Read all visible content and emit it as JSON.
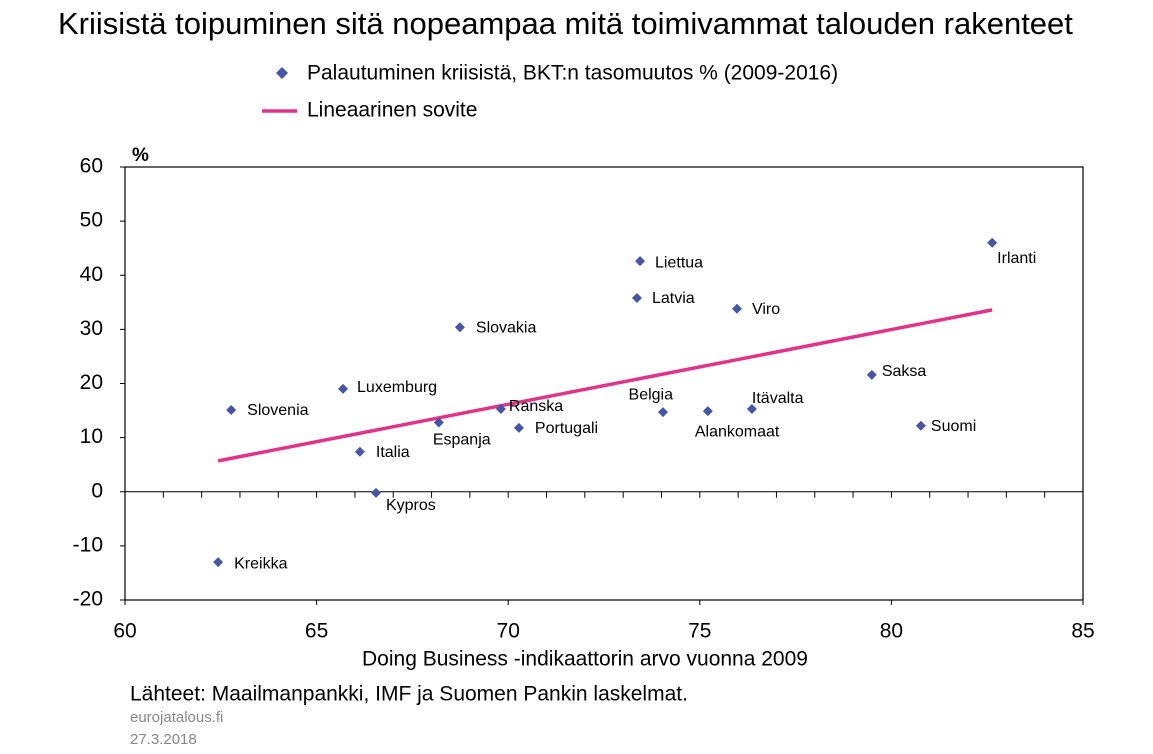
{
  "chart_data": {
    "type": "scatter",
    "title": "Kriisistä toipuminen sitä nopeampaa mitä toimivammat talouden rakenteet",
    "x_label": "Doing Business -indikaattorin arvo vuonna 2009",
    "y_unit": "%",
    "source": "Lähteet: Maailmanpankki, IMF ja Suomen Pankin laskelmat.",
    "site": "eurojatalous.fi",
    "date": "27.3.2018",
    "xlim": [
      60,
      85
    ],
    "xticks": [
      60,
      65,
      70,
      75,
      80,
      85
    ],
    "ylim": [
      -20,
      60
    ],
    "yticks": [
      -20,
      -10,
      0,
      10,
      20,
      30,
      40,
      50,
      60
    ],
    "series": [
      {
        "name": "Palautuminen kriisistä, BKT:n tasomuutos % (2009-2016)",
        "color": "#4656a6",
        "labels": [
          "Slovenia",
          "Luxemburg",
          "Italia",
          "Kypros",
          "Kreikka",
          "Espanja",
          "Slovakia",
          "Ranska",
          "Portugali",
          "Liettua",
          "Latvia",
          "Belgia",
          "Alankomaat",
          "Viro",
          "Itävalta",
          "Saksa",
          "Suomi",
          "Irlanti"
        ],
        "x": [
          62.77,
          65.69,
          66.13,
          66.55,
          62.43,
          68.19,
          68.74,
          69.81,
          70.28,
          73.44,
          73.36,
          74.04,
          75.21,
          75.97,
          76.36,
          79.49,
          80.77,
          82.63
        ],
        "values": [
          15.1,
          19.0,
          7.4,
          -0.2,
          -13.0,
          12.8,
          30.4,
          15.3,
          11.8,
          42.6,
          35.8,
          14.7,
          14.9,
          33.8,
          15.3,
          21.6,
          12.2,
          46.0
        ]
      }
    ],
    "fit": {
      "name": "Lineaarinen sovite",
      "color": "#e2338b",
      "x": [
        62.43,
        82.63
      ],
      "values": [
        5.7,
        33.6
      ]
    }
  }
}
